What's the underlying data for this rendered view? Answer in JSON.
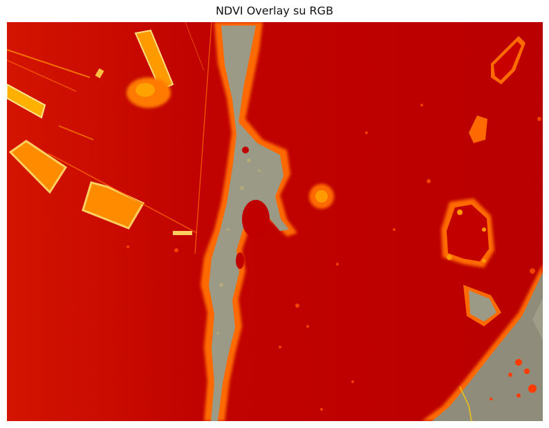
{
  "figure": {
    "title": "NDVI Overlay su RGB"
  },
  "colors": {
    "background": "#ffffff",
    "vegetation_dark": "#b30000",
    "vegetation_mid": "#d40a00",
    "edge_orange": "#ff7a00",
    "edge_yellow": "#ffd000",
    "bare_soil": "#9a9a86",
    "road_gray": "#8f8c7c"
  }
}
